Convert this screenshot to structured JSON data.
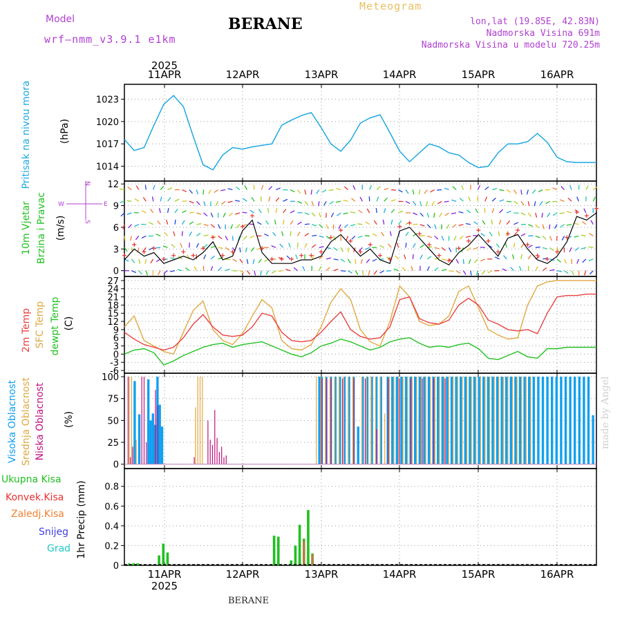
{
  "header": {
    "model_label": "Model",
    "model_name": "wrf–nmm_v3.9.1  e1km",
    "station": "BERANE",
    "meteogram": "Meteogram",
    "lonlat": "lon,lat (19.85E, 42.83N)",
    "altitude": "Nadmorska Visina 691m",
    "altitude_model": "Nadmorska Visina u modelu 720.25m",
    "year": "2025"
  },
  "footer": {
    "station": "BERANE",
    "made_by": "made by Angel"
  },
  "x_axis": {
    "start": "2025-04-10T13",
    "end": "2025-04-16T13",
    "day_labels": [
      "11APR",
      "12APR",
      "13APR",
      "14APR",
      "15APR",
      "16APR"
    ],
    "year_label": "2025"
  },
  "colors": {
    "pressure": "#1ea8e0",
    "wind_speed": "#000000",
    "gust": "#e83030",
    "t2m": "#e84040",
    "sfc": "#e0a840",
    "dewpt": "#20c020",
    "high_cloud": "#10a0f0",
    "mid_cloud": "#e0a840",
    "low_cloud": "#c01080",
    "total_precip": "#20c020",
    "conv_precip": "#e83030",
    "frozen_precip": "#f08030",
    "snow": "#4040e0",
    "hail": "#20c8c8",
    "purple": "#b040d0"
  },
  "panels": {
    "pressure": {
      "labels": [
        "Pritisak na nivou mora",
        "(hPa)"
      ],
      "yticks": [
        1014,
        1017,
        1020,
        1023
      ]
    },
    "wind": {
      "labels": [
        "10m Vjetar",
        "Brzina i Pravac",
        "(m/s)"
      ],
      "yticks": [
        0,
        3,
        6,
        9,
        12
      ],
      "compass": [
        "N",
        "S",
        "W",
        "E"
      ]
    },
    "temperature": {
      "labels": [
        "2m Temp",
        "SFC Temp",
        "dewpt Temp",
        "(C)"
      ],
      "yticks": [
        -6,
        -3,
        0,
        3,
        6,
        9,
        12,
        15,
        18,
        21,
        24,
        27
      ]
    },
    "cloud": {
      "labels": [
        "Visoka Oblacnost",
        "Srednja Oblacnost",
        "Niska Oblacnost",
        "(%)"
      ],
      "yticks": [
        0,
        25,
        50,
        75,
        100
      ]
    },
    "precip": {
      "legend": [
        "Ukupna Kisa",
        "Konvek.Kisa",
        "Zaledj.Kisa",
        "Snijeg",
        "Grad"
      ],
      "ylabel": "1hr Precip (mm)",
      "yticks": [
        0,
        0.2,
        0.4,
        0.6,
        0.8
      ]
    }
  },
  "chart_data": {
    "type": "line",
    "title": "BERANE",
    "series": [
      {
        "name": "Pritisak na nivou mora",
        "unit": "hPa",
        "x": [
          0,
          3,
          6,
          9,
          12,
          15,
          18,
          21,
          24,
          27,
          30,
          33,
          36,
          39,
          42,
          45,
          48,
          51,
          54,
          57,
          60,
          63,
          66,
          69,
          72,
          75,
          78,
          81,
          84,
          87,
          90,
          93,
          96,
          99,
          102,
          105,
          108,
          111,
          114,
          117,
          120,
          123,
          126,
          129,
          132,
          135,
          138,
          141,
          144
        ],
        "values": [
          1017.6,
          1016.1,
          1016.5,
          1019.5,
          1022.3,
          1023.5,
          1022.0,
          1018.0,
          1014.2,
          1013.5,
          1015.5,
          1016.5,
          1016.3,
          1016.6,
          1016.8,
          1017.0,
          1019.5,
          1020.2,
          1020.8,
          1021.2,
          1019.2,
          1017.0,
          1016.0,
          1017.5,
          1019.8,
          1020.5,
          1020.9,
          1018.5,
          1016.0,
          1014.6,
          1015.8,
          1017.0,
          1016.6,
          1015.8,
          1015.5,
          1014.5,
          1013.8,
          1014.0,
          1015.8,
          1017.0,
          1017.0,
          1017.3,
          1018.4,
          1017.2,
          1015.2,
          1014.6,
          1014.5,
          1014.5,
          1014.5
        ]
      },
      {
        "name": "10m wind speed",
        "unit": "m/s",
        "x": [
          0,
          3,
          6,
          9,
          12,
          15,
          18,
          21,
          24,
          27,
          30,
          33,
          36,
          39,
          42,
          45,
          48,
          51,
          54,
          57,
          60,
          63,
          66,
          69,
          72,
          75,
          78,
          81,
          84,
          87,
          90,
          93,
          96,
          99,
          102,
          105,
          108,
          111,
          114,
          117,
          120,
          123,
          126,
          129,
          132,
          135,
          138,
          141,
          144
        ],
        "values": [
          1.5,
          3.0,
          2.0,
          2.5,
          1.0,
          1.5,
          2.0,
          1.5,
          2.5,
          4.0,
          1.5,
          2.0,
          5.5,
          7.0,
          2.5,
          1.0,
          1.0,
          1.0,
          1.5,
          1.5,
          2.0,
          4.0,
          5.0,
          3.5,
          2.0,
          3.0,
          1.5,
          1.0,
          5.5,
          6.0,
          4.5,
          3.0,
          1.5,
          0.8,
          2.5,
          3.5,
          5.0,
          3.5,
          2.0,
          4.5,
          5.0,
          3.0,
          1.5,
          1.0,
          2.0,
          4.0,
          7.5,
          7.0,
          8.0
        ]
      },
      {
        "name": "2m Temp",
        "unit": "C",
        "x": [
          0,
          3,
          6,
          9,
          12,
          15,
          18,
          21,
          24,
          27,
          30,
          33,
          36,
          39,
          42,
          45,
          48,
          51,
          54,
          57,
          60,
          63,
          66,
          69,
          72,
          75,
          78,
          81,
          84,
          87,
          90,
          93,
          96,
          99,
          102,
          105,
          108,
          111,
          114,
          117,
          120,
          123,
          126,
          129,
          132,
          135,
          138,
          141,
          144
        ],
        "values": [
          8.0,
          5.5,
          3.5,
          2.5,
          1.5,
          2.5,
          6.0,
          11.0,
          14.5,
          10.0,
          7.0,
          6.5,
          7.0,
          10.0,
          15.0,
          14.0,
          8.0,
          5.0,
          4.5,
          5.0,
          8.0,
          12.0,
          15.5,
          9.0,
          6.5,
          5.5,
          6.0,
          10.0,
          20.0,
          21.0,
          13.0,
          11.5,
          11.0,
          12.5,
          18.0,
          20.5,
          18.0,
          12.5,
          11.0,
          9.0,
          8.5,
          9.0,
          7.5,
          15.0,
          21.0,
          21.5,
          21.5,
          22.0,
          22.0
        ]
      },
      {
        "name": "SFC Temp",
        "unit": "C",
        "x": [
          0,
          3,
          6,
          9,
          12,
          15,
          18,
          21,
          24,
          27,
          30,
          33,
          36,
          39,
          42,
          45,
          48,
          51,
          54,
          57,
          60,
          63,
          66,
          69,
          72,
          75,
          78,
          81,
          84,
          87,
          90,
          93,
          96,
          99,
          102,
          105,
          108,
          111,
          114,
          117,
          120,
          123,
          126,
          129,
          132,
          135,
          138,
          141,
          144
        ],
        "values": [
          10.0,
          14.0,
          5.0,
          3.0,
          1.0,
          0.0,
          8.0,
          16.0,
          19.5,
          9.0,
          5.0,
          3.5,
          7.5,
          14.0,
          20.0,
          17.0,
          5.0,
          2.0,
          1.5,
          3.5,
          10.0,
          19.0,
          24.0,
          20.0,
          9.0,
          4.5,
          3.0,
          12.0,
          25.0,
          21.0,
          12.0,
          10.5,
          11.0,
          14.0,
          23.0,
          25.0,
          17.0,
          9.0,
          7.0,
          5.5,
          6.0,
          18.0,
          25.0,
          26.5,
          27.0,
          27.0,
          27.0,
          27.0,
          27.0
        ]
      },
      {
        "name": "dewpt Temp",
        "unit": "C",
        "x": [
          0,
          3,
          6,
          9,
          12,
          15,
          18,
          21,
          24,
          27,
          30,
          33,
          36,
          39,
          42,
          45,
          48,
          51,
          54,
          57,
          60,
          63,
          66,
          69,
          72,
          75,
          78,
          81,
          84,
          87,
          90,
          93,
          96,
          99,
          102,
          105,
          108,
          111,
          114,
          117,
          120,
          123,
          126,
          129,
          132,
          135,
          138,
          141,
          144
        ],
        "values": [
          0.0,
          1.5,
          2.0,
          0.5,
          -4.0,
          -2.5,
          -0.5,
          1.0,
          2.5,
          3.5,
          4.0,
          2.5,
          3.5,
          4.0,
          4.5,
          3.0,
          1.5,
          0.0,
          -1.0,
          0.5,
          3.0,
          4.0,
          5.5,
          4.5,
          3.0,
          1.5,
          2.5,
          4.5,
          5.5,
          6.0,
          4.0,
          2.5,
          3.0,
          2.5,
          3.5,
          4.0,
          2.0,
          -1.5,
          -2.0,
          -0.5,
          1.0,
          -1.0,
          -1.5,
          2.0,
          2.0,
          2.5,
          2.5,
          2.5,
          2.5
        ]
      }
    ],
    "cloud_bars": {
      "unit": "%",
      "high": [
        [
          1,
          0
        ],
        [
          4,
          95
        ],
        [
          6,
          57
        ],
        [
          10,
          97
        ],
        [
          11,
          50
        ],
        [
          12,
          58
        ],
        [
          13,
          45
        ],
        [
          14,
          100
        ],
        [
          15,
          68
        ],
        [
          16,
          43
        ],
        [
          85,
          100
        ],
        [
          86,
          100
        ],
        [
          88,
          100
        ],
        [
          90,
          100
        ],
        [
          92,
          100
        ],
        [
          94,
          100
        ],
        [
          96,
          100
        ],
        [
          98,
          100
        ],
        [
          100,
          100
        ],
        [
          102,
          43
        ],
        [
          104,
          100
        ],
        [
          106,
          100
        ],
        [
          108,
          100
        ],
        [
          110,
          100
        ],
        [
          112,
          100
        ],
        [
          115,
          100
        ],
        [
          117,
          100
        ],
        [
          119,
          100
        ],
        [
          121,
          100
        ],
        [
          123,
          100
        ],
        [
          125,
          100
        ],
        [
          127,
          100
        ],
        [
          129,
          100
        ],
        [
          131,
          100
        ],
        [
          133,
          100
        ],
        [
          135,
          100
        ],
        [
          137,
          100
        ],
        [
          139,
          100
        ],
        [
          141,
          100
        ],
        [
          143,
          100
        ],
        [
          145,
          100
        ],
        [
          147,
          100
        ],
        [
          149,
          100
        ],
        [
          151,
          100
        ],
        [
          153,
          100
        ],
        [
          155,
          100
        ],
        [
          157,
          100
        ],
        [
          159,
          100
        ],
        [
          161,
          100
        ],
        [
          163,
          100
        ],
        [
          165,
          100
        ],
        [
          167,
          100
        ],
        [
          169,
          100
        ],
        [
          171,
          100
        ],
        [
          173,
          100
        ],
        [
          175,
          100
        ],
        [
          177,
          100
        ],
        [
          179,
          100
        ],
        [
          181,
          100
        ],
        [
          183,
          100
        ],
        [
          185,
          100
        ],
        [
          187,
          100
        ],
        [
          189,
          100
        ],
        [
          191,
          100
        ],
        [
          193,
          100
        ],
        [
          195,
          100
        ],
        [
          197,
          100
        ],
        [
          199,
          100
        ],
        [
          201,
          100
        ],
        [
          203,
          100
        ],
        [
          205,
          56
        ]
      ],
      "mid": [
        [
          2,
          100
        ],
        [
          3,
          100
        ],
        [
          5,
          28
        ],
        [
          31,
          65
        ],
        [
          32,
          100
        ],
        [
          33,
          100
        ],
        [
          34,
          100
        ],
        [
          84,
          100
        ],
        [
          86,
          100
        ],
        [
          88,
          100
        ],
        [
          90,
          100
        ],
        [
          92,
          100
        ],
        [
          94,
          100
        ],
        [
          96,
          100
        ],
        [
          98,
          100
        ],
        [
          100,
          100
        ],
        [
          104,
          100
        ],
        [
          106,
          100
        ],
        [
          108,
          100
        ],
        [
          110,
          100
        ],
        [
          112,
          100
        ],
        [
          114,
          58
        ],
        [
          116,
          100
        ],
        [
          118,
          100
        ],
        [
          120,
          100
        ],
        [
          122,
          100
        ],
        [
          124,
          100
        ],
        [
          126,
          100
        ],
        [
          128,
          100
        ],
        [
          130,
          100
        ],
        [
          132,
          100
        ],
        [
          134,
          100
        ],
        [
          136,
          100
        ],
        [
          138,
          100
        ],
        [
          140,
          100
        ],
        [
          142,
          100
        ],
        [
          144,
          100
        ],
        [
          146,
          100
        ],
        [
          148,
          100
        ],
        [
          150,
          100
        ],
        [
          152,
          100
        ],
        [
          154,
          100
        ],
        [
          156,
          100
        ],
        [
          158,
          100
        ],
        [
          160,
          100
        ],
        [
          162,
          100
        ],
        [
          164,
          100
        ],
        [
          166,
          100
        ],
        [
          168,
          100
        ],
        [
          170,
          100
        ],
        [
          172,
          100
        ],
        [
          174,
          100
        ],
        [
          176,
          100
        ],
        [
          178,
          100
        ]
      ],
      "low": [
        [
          1,
          100
        ],
        [
          2,
          8
        ],
        [
          3,
          20
        ],
        [
          7,
          100
        ],
        [
          8,
          100
        ],
        [
          9,
          25
        ],
        [
          13,
          85
        ],
        [
          14,
          67
        ],
        [
          30,
          8
        ],
        [
          36,
          50
        ],
        [
          37,
          28
        ],
        [
          38,
          22
        ],
        [
          39,
          62
        ],
        [
          40,
          30
        ],
        [
          41,
          14
        ],
        [
          42,
          20
        ],
        [
          43,
          8
        ],
        [
          44,
          10
        ],
        [
          86,
          98
        ],
        [
          88,
          98
        ],
        [
          90,
          98
        ],
        [
          95,
          98
        ],
        [
          100,
          98
        ],
        [
          105,
          98
        ],
        [
          110,
          40
        ],
        [
          115,
          98
        ],
        [
          120,
          98
        ],
        [
          125,
          98
        ],
        [
          130,
          98
        ],
        [
          135,
          98
        ],
        [
          140,
          98
        ]
      ]
    },
    "precip_bars": {
      "unit": "mm",
      "total": [
        [
          1,
          0.02
        ],
        [
          2,
          0.02
        ],
        [
          3,
          0.02
        ],
        [
          8,
          0.1
        ],
        [
          9,
          0.22
        ],
        [
          10,
          0.13
        ],
        [
          35,
          0.3
        ],
        [
          36,
          0.29
        ],
        [
          39,
          0.05
        ],
        [
          40,
          0.2
        ],
        [
          41,
          0.41
        ],
        [
          42,
          0.27
        ],
        [
          43,
          0.56
        ],
        [
          44,
          0.12
        ]
      ],
      "convective": [
        [
          42,
          0.25
        ],
        [
          44,
          0.11
        ]
      ]
    }
  }
}
